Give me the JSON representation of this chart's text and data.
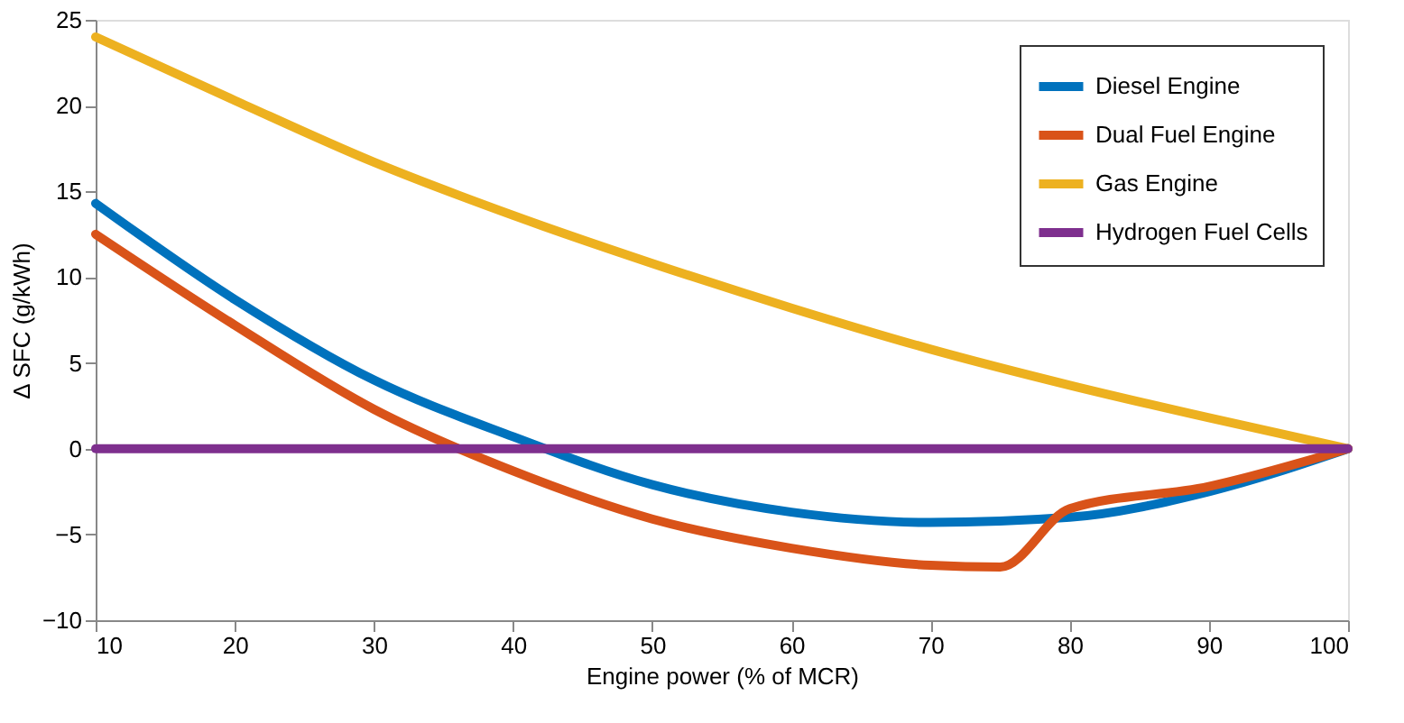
{
  "chart_data": {
    "type": "line",
    "xlabel": "Engine power (% of MCR)",
    "ylabel": "Δ SFC (g/kWh)",
    "xlim": [
      10,
      100
    ],
    "xticks": [
      10,
      20,
      30,
      40,
      50,
      60,
      70,
      80,
      90,
      100
    ],
    "ylim": [
      -10,
      25
    ],
    "yticks": [
      -10,
      -5,
      0,
      5,
      10,
      15,
      20,
      25
    ],
    "grid": false,
    "legend": "top right",
    "line_style": "solid",
    "marker": "none",
    "series": [
      {
        "name": "Diesel Engine",
        "color": "#0072bd",
        "x": [
          10,
          20,
          30,
          40,
          50,
          60,
          70,
          80,
          90,
          100
        ],
        "values": [
          14.3,
          8.7,
          4.0,
          0.7,
          -2.1,
          -3.7,
          -4.3,
          -4.0,
          -2.5,
          0
        ]
      },
      {
        "name": "Dual Fuel Engine",
        "color": "#d95319",
        "x": [
          10,
          20,
          30,
          40,
          50,
          60,
          70,
          75,
          80,
          90,
          100
        ],
        "values": [
          12.5,
          7.2,
          2.3,
          -1.3,
          -4.1,
          -5.8,
          -6.8,
          -6.9,
          -3.5,
          -2.2,
          0
        ]
      },
      {
        "name": "Gas Engine",
        "color": "#edb120",
        "x": [
          10,
          20,
          30,
          40,
          50,
          60,
          70,
          80,
          90,
          100
        ],
        "values": [
          24,
          20.3,
          16.7,
          13.6,
          10.8,
          8.2,
          5.8,
          3.7,
          1.8,
          0
        ]
      },
      {
        "name": "Hydrogen Fuel Cells",
        "color": "#7e2f8e",
        "x": [
          10,
          100
        ],
        "values": [
          0,
          0
        ]
      }
    ]
  }
}
